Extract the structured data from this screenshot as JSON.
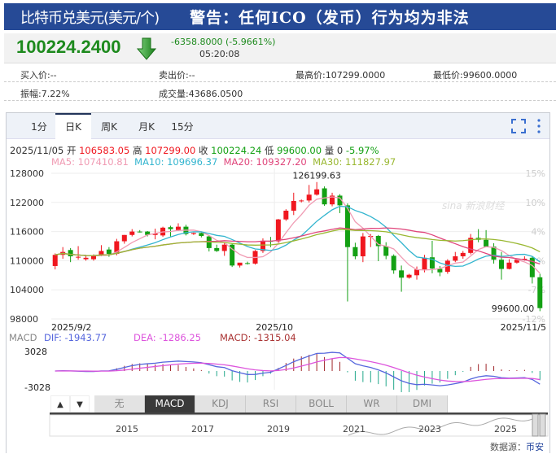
{
  "header": {
    "title": "比特币兑美元(美元/个)",
    "warning": "警告：任何ICO（发币）行为均为非法"
  },
  "quote": {
    "price": "100224.2400",
    "direction": "down",
    "change": "-6358.8000 (-5.9661%)",
    "time": "05:20:08"
  },
  "stats": {
    "bid": "买入价:--",
    "ask": "卖出价:--",
    "high": "最高价:107299.0000",
    "low": "最低价:99600.0000",
    "amplitude": "振幅:7.22%",
    "volume": "成交量:43686.0500"
  },
  "tabs": [
    {
      "label": "1分"
    },
    {
      "label": "日K",
      "active": true
    },
    {
      "label": "周K"
    },
    {
      "label": "月K"
    },
    {
      "label": "15分"
    }
  ],
  "info": {
    "date": "2025/11/05",
    "open_label": "开",
    "open": "106583.05",
    "high_label": "高",
    "high": "107299.00",
    "close_label": "收",
    "close": "100224.24",
    "low_label": "低",
    "low": "99600.00",
    "vol_label": "量",
    "vol": "0",
    "pct": "-5.97%"
  },
  "ma": {
    "ma5": "MA5: 107410.81",
    "ma10": "MA10: 109696.37",
    "ma20": "MA20: 109327.20",
    "ma30": "MA30: 111827.97"
  },
  "macd_info": {
    "label": "MACD",
    "dif": "DIF: -1943.77",
    "dea": "DEA: -1286.25",
    "macd": "MACD: -1315.04"
  },
  "indicator_tabs": [
    {
      "label": "无"
    },
    {
      "label": "MACD",
      "active": true
    },
    {
      "label": "KDJ"
    },
    {
      "label": "RSI"
    },
    {
      "label": "BOLL"
    },
    {
      "label": "WR"
    },
    {
      "label": "DMI"
    }
  ],
  "source": {
    "label": "数据源：",
    "name": "币安"
  },
  "watermark": "sina 新浪财经",
  "colors": {
    "up": "#f0171f",
    "down": "#13a013",
    "ma5": "#f09bb3",
    "ma10": "#33b5cf",
    "ma20": "#e0457b",
    "ma30": "#9ab832",
    "dif": "#5566dd",
    "dea": "#dd55dd",
    "header": "#264a96"
  },
  "chart_data": {
    "type": "candlestick",
    "y_ticks": [
      "128000",
      "122000",
      "116000",
      "110000",
      "104000",
      "98000"
    ],
    "ylim": [
      98000,
      128000
    ],
    "pct_ticks": [
      "15%",
      "10%",
      "4%",
      "-1%",
      "-7%",
      "-12%"
    ],
    "x_labels": [
      "2025/9/2",
      "2025/10",
      "2025/11/5"
    ],
    "max_label": "126199.63",
    "min_label": "99600.00",
    "macd_ticks": [
      "3028",
      "-3028"
    ],
    "nav_years": [
      "2015",
      "2017",
      "2019",
      "2021",
      "2023",
      "2025"
    ],
    "ohlc": [
      [
        108900,
        111500,
        108200,
        111200
      ],
      [
        111200,
        112800,
        110400,
        111800
      ],
      [
        112200,
        112600,
        109700,
        110900
      ],
      [
        110700,
        113000,
        110200,
        110800
      ],
      [
        110300,
        111200,
        110000,
        110600
      ],
      [
        110300,
        111300,
        110000,
        111000
      ],
      [
        111200,
        113200,
        110900,
        112000
      ],
      [
        112300,
        112800,
        110800,
        111400
      ],
      [
        111400,
        114500,
        111100,
        114000
      ],
      [
        114000,
        115300,
        113500,
        115300
      ],
      [
        115300,
        116500,
        115000,
        116000
      ],
      [
        116000,
        116300,
        115800,
        115900
      ],
      [
        116000,
        116100,
        115000,
        115300
      ],
      [
        115300,
        116600,
        114400,
        115600
      ],
      [
        115200,
        117000,
        114900,
        116800
      ],
      [
        116900,
        117200,
        115000,
        116500
      ],
      [
        116300,
        117700,
        116100,
        117000
      ],
      [
        117000,
        117400,
        115200,
        115500
      ],
      [
        115500,
        115800,
        115300,
        115700
      ],
      [
        115700,
        115800,
        114800,
        115100
      ],
      [
        115000,
        115100,
        111900,
        112600
      ],
      [
        112600,
        113300,
        111800,
        112000
      ],
      [
        112000,
        113800,
        111000,
        113300
      ],
      [
        113300,
        113600,
        108700,
        109000
      ],
      [
        109000,
        109500,
        108600,
        109600
      ],
      [
        109500,
        109800,
        109200,
        109400
      ],
      [
        109400,
        112200,
        109200,
        112000
      ],
      [
        112000,
        114600,
        111600,
        114100
      ],
      [
        114100,
        114900,
        112800,
        113900
      ],
      [
        114000,
        118600,
        113800,
        118500
      ],
      [
        118500,
        120600,
        118200,
        120300
      ],
      [
        120300,
        124000,
        119400,
        122300
      ],
      [
        122300,
        122600,
        122000,
        122400
      ],
      [
        122400,
        125600,
        122000,
        123600
      ],
      [
        123600,
        126199.63,
        123400,
        124700
      ],
      [
        124900,
        125300,
        121300,
        121600
      ],
      [
        121600,
        124000,
        121200,
        123400
      ],
      [
        123400,
        123700,
        119800,
        121400
      ],
      [
        121400,
        121800,
        101600,
        112800
      ],
      [
        112800,
        113700,
        110300,
        110900
      ],
      [
        110900,
        115700,
        109700,
        115000
      ],
      [
        114900,
        115500,
        112800,
        115100
      ],
      [
        115100,
        115300,
        109900,
        113000
      ],
      [
        113000,
        113800,
        110300,
        111000
      ],
      [
        111000,
        111300,
        107300,
        108000
      ],
      [
        108000,
        109000,
        103600,
        106500
      ],
      [
        106500,
        107300,
        106300,
        107100
      ],
      [
        107000,
        108800,
        106100,
        108200
      ],
      [
        108200,
        111200,
        107600,
        110600
      ],
      [
        110700,
        114100,
        107400,
        108400
      ],
      [
        108300,
        108900,
        106800,
        107600
      ],
      [
        107700,
        110300,
        107300,
        110000
      ],
      [
        110000,
        111800,
        109700,
        110900
      ],
      [
        110900,
        112000,
        110400,
        111600
      ],
      [
        111600,
        115500,
        111300,
        114700
      ],
      [
        114700,
        116500,
        113800,
        114300
      ],
      [
        114300,
        116300,
        112900,
        112900
      ],
      [
        112900,
        113600,
        109400,
        110200
      ],
      [
        110200,
        111800,
        106100,
        108300
      ],
      [
        108300,
        110300,
        108200,
        109600
      ],
      [
        109600,
        110200,
        109400,
        110200
      ],
      [
        110200,
        110900,
        110000,
        110400
      ],
      [
        110600,
        110900,
        105300,
        106600
      ],
      [
        106583.05,
        107299,
        99600,
        100224.24
      ]
    ]
  }
}
